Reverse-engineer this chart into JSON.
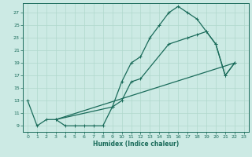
{
  "xlabel": "Humidex (Indice chaleur)",
  "bg_color": "#cceae4",
  "line_color": "#1a6b5a",
  "grid_color": "#b0d8cc",
  "xlim": [
    -0.5,
    23.5
  ],
  "ylim": [
    8.0,
    28.5
  ],
  "xticks": [
    0,
    1,
    2,
    3,
    4,
    5,
    6,
    7,
    8,
    9,
    10,
    11,
    12,
    13,
    14,
    15,
    16,
    17,
    18,
    19,
    20,
    21,
    22,
    23
  ],
  "yticks": [
    9,
    11,
    13,
    15,
    17,
    19,
    21,
    23,
    25,
    27
  ],
  "line1_x": [
    0,
    1,
    2,
    3,
    4,
    5,
    6,
    7,
    8,
    9,
    10,
    11,
    12,
    13,
    14,
    15,
    16,
    17,
    18,
    19,
    20,
    21,
    22
  ],
  "line1_y": [
    13,
    9,
    10,
    10,
    9,
    9,
    9,
    9,
    9,
    12,
    16,
    19,
    20,
    23,
    25,
    27,
    28,
    27,
    26,
    24,
    22,
    17,
    19
  ],
  "line2_x": [
    3,
    22
  ],
  "line2_y": [
    10,
    19
  ],
  "line3_x": [
    3,
    9,
    10,
    11,
    12,
    15,
    17,
    18,
    19,
    20,
    21,
    22
  ],
  "line3_y": [
    10,
    12,
    13,
    16,
    16.5,
    22,
    23,
    23.5,
    24,
    22,
    17,
    19
  ]
}
